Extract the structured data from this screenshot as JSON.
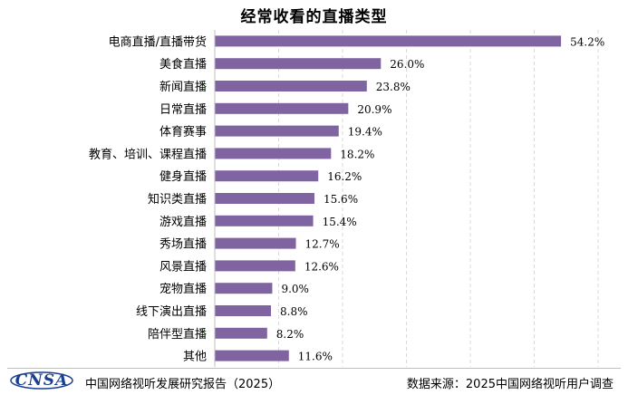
{
  "chart_data": {
    "type": "bar",
    "orientation": "horizontal",
    "title": "经常收看的直播类型",
    "categories": [
      "电商直播/直播带货",
      "美食直播",
      "新闻直播",
      "日常直播",
      "体育赛事",
      "教育、培训、课程直播",
      "健身直播",
      "知识类直播",
      "游戏直播",
      "秀场直播",
      "风景直播",
      "宠物直播",
      "线下演出直播",
      "陪伴型直播",
      "其他"
    ],
    "values": [
      54.2,
      26.0,
      23.8,
      20.9,
      19.4,
      18.2,
      16.2,
      15.6,
      15.4,
      12.7,
      12.6,
      9.0,
      8.8,
      8.2,
      11.6
    ],
    "value_labels": [
      "54.2%",
      "26.0%",
      "23.8%",
      "20.9%",
      "19.4%",
      "18.2%",
      "16.2%",
      "15.6%",
      "15.4%",
      "12.7%",
      "12.6%",
      "9.0%",
      "8.8%",
      "8.2%",
      "11.6%"
    ],
    "xlim": [
      0,
      60
    ],
    "xlabel": "",
    "ylabel": "",
    "grid": "vertical-dashed",
    "bar_color": "#8064a2"
  },
  "footer": {
    "logo_text": "CNSA",
    "report": "中国网络视听发展研究报告（2025）",
    "source": "数据来源：2025中国网络视听用户调查"
  },
  "colors": {
    "bar": "#8064a2",
    "grid": "#d9d9d9",
    "logo": "#1a3f8f"
  }
}
